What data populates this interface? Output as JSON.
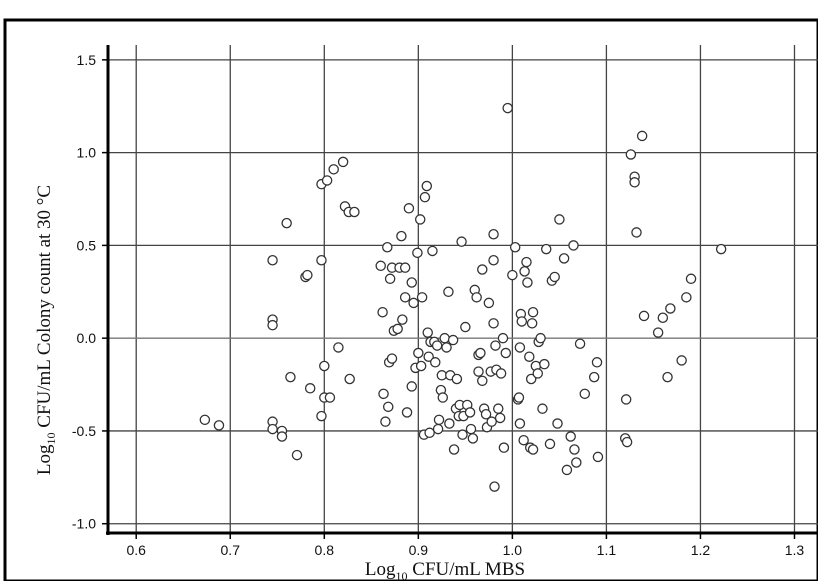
{
  "chart_data": {
    "type": "scatter",
    "xlabel": {
      "pre": "Log",
      "sub": "10",
      "post": " CFU/mL MBS"
    },
    "ylabel": {
      "pre": "Log",
      "sub": "10",
      "post": " CFU/mL  Colony count at 30 °C"
    },
    "xlim": [
      0.57,
      1.325
    ],
    "ylim": [
      -1.05,
      1.58
    ],
    "xticks": [
      0.6,
      0.7,
      0.8,
      0.9,
      1.0,
      1.1,
      1.2,
      1.3
    ],
    "xtick_labels": [
      "0.6",
      "0.7",
      "0.8",
      "0.9",
      "1.0",
      "1.1",
      "1.2",
      "1.3"
    ],
    "yticks": [
      -1.0,
      -0.5,
      0.0,
      0.5,
      1.0,
      1.5
    ],
    "ytick_labels": [
      "-1.0",
      "-0.5",
      "0.0",
      "0.5",
      "1.0",
      "1.5"
    ],
    "grid": true,
    "marker": "open-circle",
    "colors": {
      "marker_stroke": "#333333",
      "grid": "#444444",
      "axis": "#000000",
      "zero_line": "#777777"
    },
    "points": [
      [
        0.673,
        -0.44
      ],
      [
        0.688,
        -0.47
      ],
      [
        0.745,
        0.42
      ],
      [
        0.745,
        0.1
      ],
      [
        0.745,
        0.07
      ],
      [
        0.745,
        -0.45
      ],
      [
        0.745,
        -0.49
      ],
      [
        0.755,
        -0.5
      ],
      [
        0.755,
        -0.53
      ],
      [
        0.76,
        0.62
      ],
      [
        0.764,
        -0.21
      ],
      [
        0.771,
        -0.63
      ],
      [
        0.78,
        0.33
      ],
      [
        0.782,
        0.34
      ],
      [
        0.785,
        -0.27
      ],
      [
        0.797,
        0.83
      ],
      [
        0.797,
        0.42
      ],
      [
        0.797,
        -0.42
      ],
      [
        0.8,
        -0.15
      ],
      [
        0.8,
        -0.32
      ],
      [
        0.803,
        0.85
      ],
      [
        0.806,
        -0.32
      ],
      [
        0.81,
        0.91
      ],
      [
        0.815,
        -0.05
      ],
      [
        0.82,
        0.95
      ],
      [
        0.822,
        0.71
      ],
      [
        0.826,
        0.68
      ],
      [
        0.827,
        -0.22
      ],
      [
        0.832,
        0.68
      ],
      [
        0.86,
        0.39
      ],
      [
        0.862,
        0.14
      ],
      [
        0.863,
        -0.3
      ],
      [
        0.865,
        -0.45
      ],
      [
        0.867,
        0.49
      ],
      [
        0.868,
        -0.37
      ],
      [
        0.869,
        -0.13
      ],
      [
        0.87,
        0.32
      ],
      [
        0.872,
        -0.11
      ],
      [
        0.872,
        0.38
      ],
      [
        0.874,
        0.04
      ],
      [
        0.878,
        0.05
      ],
      [
        0.88,
        0.38
      ],
      [
        0.882,
        0.55
      ],
      [
        0.883,
        0.1
      ],
      [
        0.886,
        0.22
      ],
      [
        0.886,
        0.38
      ],
      [
        0.888,
        -0.4
      ],
      [
        0.89,
        0.7
      ],
      [
        0.893,
        0.3
      ],
      [
        0.893,
        -0.26
      ],
      [
        0.895,
        0.19
      ],
      [
        0.897,
        -0.16
      ],
      [
        0.899,
        0.46
      ],
      [
        0.9,
        -0.08
      ],
      [
        0.902,
        0.64
      ],
      [
        0.903,
        -0.15
      ],
      [
        0.904,
        0.22
      ],
      [
        0.906,
        -0.52
      ],
      [
        0.907,
        0.76
      ],
      [
        0.909,
        0.82
      ],
      [
        0.91,
        0.03
      ],
      [
        0.911,
        -0.1
      ],
      [
        0.912,
        -0.51
      ],
      [
        0.913,
        -0.02
      ],
      [
        0.915,
        0.47
      ],
      [
        0.917,
        -0.02
      ],
      [
        0.918,
        -0.13
      ],
      [
        0.92,
        -0.04
      ],
      [
        0.921,
        -0.49
      ],
      [
        0.922,
        -0.44
      ],
      [
        0.924,
        -0.28
      ],
      [
        0.925,
        -0.2
      ],
      [
        0.926,
        -0.32
      ],
      [
        0.928,
        0.0
      ],
      [
        0.93,
        -0.05
      ],
      [
        0.932,
        0.25
      ],
      [
        0.933,
        -0.46
      ],
      [
        0.934,
        -0.2
      ],
      [
        0.937,
        -0.01
      ],
      [
        0.938,
        -0.6
      ],
      [
        0.94,
        -0.38
      ],
      [
        0.941,
        -0.22
      ],
      [
        0.943,
        -0.42
      ],
      [
        0.944,
        -0.36
      ],
      [
        0.946,
        0.52
      ],
      [
        0.947,
        -0.52
      ],
      [
        0.948,
        -0.42
      ],
      [
        0.95,
        0.06
      ],
      [
        0.952,
        -0.36
      ],
      [
        0.955,
        -0.4
      ],
      [
        0.956,
        -0.49
      ],
      [
        0.958,
        -0.54
      ],
      [
        0.96,
        0.26
      ],
      [
        0.962,
        0.22
      ],
      [
        0.964,
        -0.18
      ],
      [
        0.964,
        -0.09
      ],
      [
        0.966,
        -0.08
      ],
      [
        0.968,
        0.37
      ],
      [
        0.968,
        -0.23
      ],
      [
        0.97,
        -0.38
      ],
      [
        0.972,
        -0.41
      ],
      [
        0.973,
        -0.48
      ],
      [
        0.975,
        0.19
      ],
      [
        0.977,
        -0.18
      ],
      [
        0.978,
        -0.45
      ],
      [
        0.98,
        0.56
      ],
      [
        0.98,
        0.42
      ],
      [
        0.98,
        0.08
      ],
      [
        0.981,
        -0.8
      ],
      [
        0.982,
        -0.04
      ],
      [
        0.983,
        -0.17
      ],
      [
        0.985,
        -0.38
      ],
      [
        0.987,
        -0.43
      ],
      [
        0.988,
        -0.19
      ],
      [
        0.99,
        0.0
      ],
      [
        0.991,
        -0.59
      ],
      [
        0.993,
        -0.08
      ],
      [
        0.995,
        1.24
      ],
      [
        1.0,
        0.34
      ],
      [
        1.003,
        0.49
      ],
      [
        1.006,
        -0.33
      ],
      [
        1.007,
        -0.32
      ],
      [
        1.008,
        -0.05
      ],
      [
        1.008,
        -0.46
      ],
      [
        1.009,
        0.13
      ],
      [
        1.01,
        0.09
      ],
      [
        1.012,
        -0.55
      ],
      [
        1.013,
        0.36
      ],
      [
        1.015,
        0.41
      ],
      [
        1.016,
        0.3
      ],
      [
        1.018,
        -0.1
      ],
      [
        1.019,
        -0.59
      ],
      [
        1.02,
        -0.22
      ],
      [
        1.021,
        0.08
      ],
      [
        1.022,
        0.14
      ],
      [
        1.022,
        -0.6
      ],
      [
        1.025,
        -0.15
      ],
      [
        1.027,
        -0.19
      ],
      [
        1.028,
        -0.02
      ],
      [
        1.03,
        0.0
      ],
      [
        1.032,
        -0.38
      ],
      [
        1.034,
        -0.14
      ],
      [
        1.036,
        0.48
      ],
      [
        1.04,
        -0.57
      ],
      [
        1.042,
        0.31
      ],
      [
        1.045,
        0.33
      ],
      [
        1.048,
        -0.46
      ],
      [
        1.05,
        0.64
      ],
      [
        1.055,
        0.43
      ],
      [
        1.058,
        -0.71
      ],
      [
        1.062,
        -0.53
      ],
      [
        1.065,
        0.5
      ],
      [
        1.066,
        -0.6
      ],
      [
        1.068,
        -0.67
      ],
      [
        1.072,
        -0.03
      ],
      [
        1.077,
        -0.3
      ],
      [
        1.087,
        -0.21
      ],
      [
        1.09,
        -0.13
      ],
      [
        1.091,
        -0.64
      ],
      [
        1.12,
        -0.54
      ],
      [
        1.121,
        -0.33
      ],
      [
        1.122,
        -0.56
      ],
      [
        1.126,
        0.99
      ],
      [
        1.13,
        0.87
      ],
      [
        1.13,
        0.84
      ],
      [
        1.132,
        0.57
      ],
      [
        1.138,
        1.09
      ],
      [
        1.14,
        0.12
      ],
      [
        1.155,
        0.03
      ],
      [
        1.16,
        0.11
      ],
      [
        1.165,
        -0.21
      ],
      [
        1.168,
        0.16
      ],
      [
        1.18,
        -0.12
      ],
      [
        1.185,
        0.22
      ],
      [
        1.19,
        0.32
      ],
      [
        1.222,
        0.48
      ]
    ]
  }
}
